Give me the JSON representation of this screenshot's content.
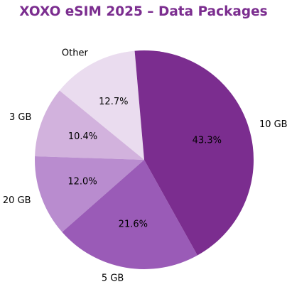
{
  "chart_data": {
    "type": "pie",
    "title": "XOXO eSIM 2025 – Data Packages",
    "categories": [
      "Other",
      "3 GB",
      "20 GB",
      "5 GB",
      "10 GB"
    ],
    "values": [
      12.7,
      10.4,
      12.0,
      21.6,
      43.3
    ],
    "value_labels": [
      "12.7%",
      "10.4%",
      "12.0%",
      "21.6%",
      "43.3%"
    ],
    "colors": [
      "#eadcef",
      "#d2b2dd",
      "#b98ccf",
      "#9a5bb7",
      "#7b2d8f"
    ],
    "label_color": "#000000",
    "title_color": "#7b2d8f",
    "legend": "none"
  }
}
